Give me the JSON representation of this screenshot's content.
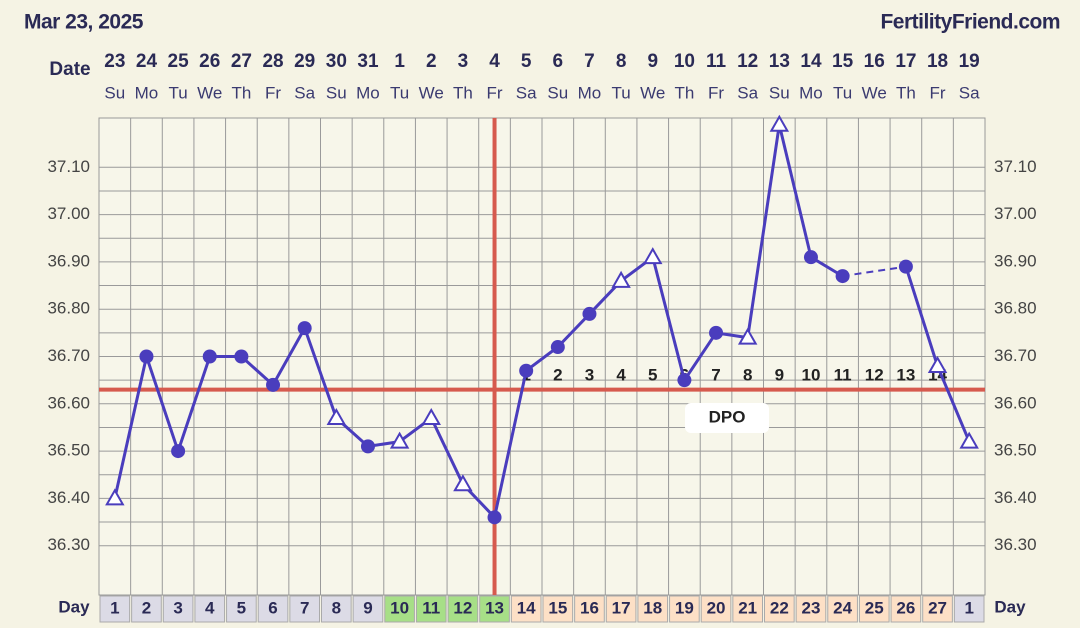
{
  "chart_data": {
    "type": "line",
    "title": "Mar 23, 2025",
    "site": "FertilityFriend.com",
    "date_label": "Date",
    "day_label": "Day",
    "dpo_label": "DPO",
    "categories": [
      "23",
      "24",
      "25",
      "26",
      "27",
      "28",
      "29",
      "30",
      "31",
      "1",
      "2",
      "3",
      "4",
      "5",
      "6",
      "7",
      "8",
      "9",
      "10",
      "11",
      "12",
      "13",
      "14",
      "15",
      "16",
      "17",
      "18",
      "19"
    ],
    "weekdays": [
      "Su",
      "Mo",
      "Tu",
      "We",
      "Th",
      "Fr",
      "Sa",
      "Su",
      "Mo",
      "Tu",
      "We",
      "Th",
      "Fr",
      "Sa",
      "Su",
      "Mo",
      "Tu",
      "We",
      "Th",
      "Fr",
      "Sa",
      "Su",
      "Mo",
      "Tu",
      "We",
      "Th",
      "Fr",
      "Sa"
    ],
    "cycle_days": [
      1,
      2,
      3,
      4,
      5,
      6,
      7,
      8,
      9,
      10,
      11,
      12,
      13,
      14,
      15,
      16,
      17,
      18,
      19,
      20,
      21,
      22,
      23,
      24,
      25,
      26,
      27,
      1
    ],
    "day_colors": [
      "#dcdbe6",
      "#dcdbe6",
      "#dcdbe6",
      "#dcdbe6",
      "#dcdbe6",
      "#dcdbe6",
      "#dcdbe6",
      "#dcdbe6",
      "#dcdbe6",
      "#a7df87",
      "#a7df87",
      "#a7df87",
      "#a7df87",
      "#fde0c6",
      "#fde0c6",
      "#fde0c6",
      "#fde0c6",
      "#fde0c6",
      "#fde0c6",
      "#fde0c6",
      "#fde0c6",
      "#fde0c6",
      "#fde0c6",
      "#fde0c6",
      "#fde0c6",
      "#fde0c6",
      "#fde0c6",
      "#dcdbe6"
    ],
    "dpo": [
      null,
      null,
      null,
      null,
      null,
      null,
      null,
      null,
      null,
      null,
      null,
      null,
      null,
      1,
      2,
      3,
      4,
      5,
      6,
      7,
      8,
      9,
      10,
      11,
      12,
      13,
      14,
      null
    ],
    "values": [
      36.4,
      36.7,
      36.5,
      36.7,
      36.7,
      36.64,
      36.76,
      36.57,
      36.51,
      36.52,
      36.57,
      36.43,
      36.36,
      36.67,
      36.72,
      36.79,
      36.86,
      36.91,
      36.65,
      36.75,
      36.74,
      37.19,
      36.91,
      36.87,
      null,
      36.89,
      36.68,
      36.52
    ],
    "markers": [
      "triangle",
      "circle",
      "circle",
      "circle",
      "circle",
      "circle",
      "circle",
      "triangle",
      "circle",
      "triangle",
      "triangle",
      "triangle",
      "circle",
      "circle",
      "circle",
      "circle",
      "triangle",
      "triangle",
      "circle",
      "circle",
      "triangle",
      "triangle",
      "circle",
      "circle",
      null,
      "circle",
      "triangle",
      "triangle"
    ],
    "color": "#4a3dbd",
    "coverline": 36.63,
    "ovulation_day": 13,
    "reference_color": "#d65a4e",
    "ylim": [
      36.2,
      37.2
    ],
    "yticks": [
      {
        "value": 36.3,
        "label": "36.30"
      },
      {
        "value": 36.4,
        "label": "36.40"
      },
      {
        "value": 36.5,
        "label": "36.50"
      },
      {
        "value": 36.6,
        "label": "36.60"
      },
      {
        "value": 36.7,
        "label": "36.70"
      },
      {
        "value": 36.8,
        "label": "36.80"
      },
      {
        "value": 36.9,
        "label": "36.90"
      },
      {
        "value": 37.0,
        "label": "37.00"
      },
      {
        "value": 37.1,
        "label": "37.10"
      }
    ],
    "grid": true
  }
}
